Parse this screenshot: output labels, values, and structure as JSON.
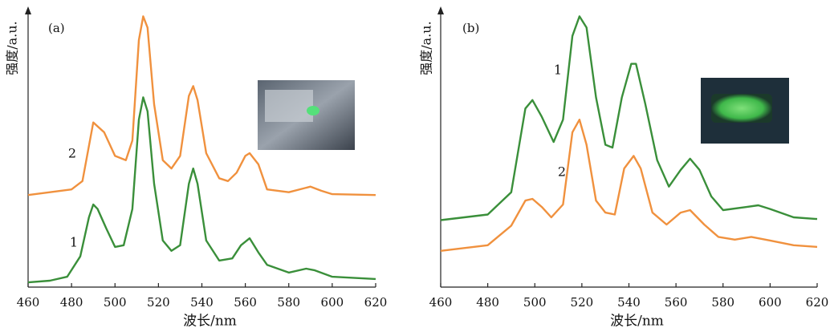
{
  "chart_data": [
    {
      "type": "line",
      "panel": "(a)",
      "ylabel": "强度/a.u.",
      "xlabel": "波长/nm",
      "xlim": [
        460,
        620
      ],
      "ylim": [
        0,
        100
      ],
      "xticks": [
        460,
        480,
        500,
        520,
        540,
        560,
        580,
        600,
        620
      ],
      "series": [
        {
          "name": "2",
          "color": "#f0913e",
          "x": [
            460,
            470,
            480,
            485,
            490,
            495,
            500,
            505,
            508,
            511,
            513,
            515,
            518,
            522,
            526,
            530,
            534,
            536,
            538,
            542,
            548,
            552,
            556,
            560,
            562,
            566,
            570,
            580,
            590,
            595,
            600,
            620
          ],
          "values": [
            33,
            34,
            35,
            38,
            59,
            55.5,
            47,
            45.5,
            52.5,
            88.5,
            97,
            93,
            65.5,
            45.5,
            42.5,
            47,
            68.5,
            72,
            67,
            48,
            39,
            38,
            41,
            47,
            48,
            44,
            35,
            34,
            36,
            34.5,
            33.3,
            33
          ]
        },
        {
          "name": "1",
          "color": "#3a8f3a",
          "x": [
            460,
            470,
            478,
            484,
            488,
            490,
            492,
            496,
            500,
            504,
            508,
            511,
            513,
            515,
            518,
            522,
            526,
            530,
            534,
            536,
            538,
            542,
            548,
            554,
            558,
            562,
            566,
            570,
            580,
            588,
            592,
            600,
            620
          ],
          "values": [
            1.7,
            2.3,
            3.7,
            11,
            25,
            29.6,
            28,
            21,
            14.4,
            15,
            28,
            60,
            68,
            63,
            37,
            16.7,
            13,
            15,
            37,
            42.5,
            37,
            16.7,
            9.5,
            10.3,
            15,
            17.5,
            12.4,
            8,
            5.2,
            6.6,
            6,
            3.7,
            2.9
          ]
        }
      ]
    },
    {
      "type": "line",
      "panel": "(b)",
      "ylabel": "强度/a.u.",
      "xlabel": "波长/nm",
      "xlim": [
        460,
        620
      ],
      "ylim": [
        0,
        100
      ],
      "xticks": [
        460,
        480,
        500,
        520,
        540,
        560,
        580,
        600,
        620
      ],
      "series": [
        {
          "name": "1",
          "color": "#3a8f3a",
          "x": [
            460,
            480,
            490,
            496,
            499,
            503,
            508,
            512,
            516,
            519,
            522,
            526,
            530,
            533,
            537,
            541,
            543,
            547,
            552,
            557,
            562,
            566,
            570,
            575,
            580,
            590,
            595,
            600,
            610,
            620
          ],
          "values": [
            24,
            26,
            34,
            64,
            67,
            61,
            52,
            60,
            90,
            97,
            93,
            68,
            51,
            50,
            68,
            80,
            80,
            65.5,
            45.5,
            36,
            42,
            46,
            42,
            32.5,
            27.6,
            28.7,
            29.3,
            28,
            25,
            24.4
          ]
        },
        {
          "name": "2",
          "color": "#f0913e",
          "x": [
            460,
            480,
            490,
            496,
            499,
            503,
            507,
            512,
            516,
            519,
            522,
            526,
            530,
            534,
            538,
            542,
            545,
            550,
            556,
            562,
            566,
            572,
            578,
            585,
            592,
            600,
            610,
            620
          ],
          "values": [
            13,
            15,
            22,
            31,
            31.6,
            28.7,
            25,
            29.6,
            55.5,
            60,
            51,
            31,
            26.7,
            26,
            42.5,
            47,
            42.5,
            26.7,
            22.4,
            26.7,
            27.6,
            22.4,
            18,
            17,
            18,
            16.7,
            15,
            14.4
          ]
        }
      ]
    }
  ]
}
